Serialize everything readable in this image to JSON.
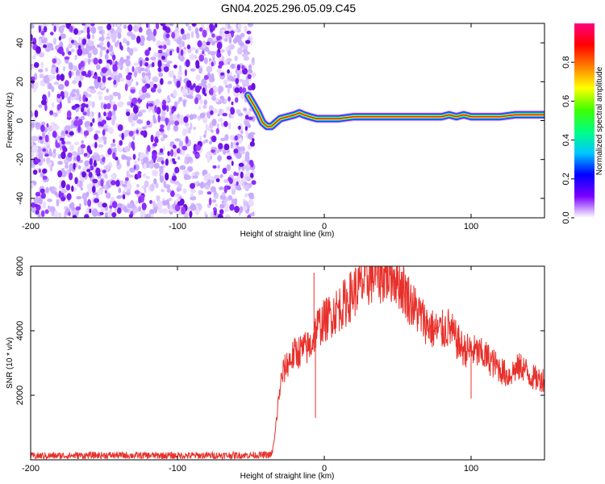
{
  "title": "GN04.2025.296.05.09.C45",
  "chart_data": [
    {
      "type": "heatmap",
      "name": "spectrogram",
      "xlabel": "Height of straight line (km)",
      "ylabel": "Frequency (Hz)",
      "xlim": [
        -200,
        150
      ],
      "ylim": [
        -50,
        50
      ],
      "xticks": [
        -200,
        -100,
        0,
        100
      ],
      "yticks": [
        -40,
        -20,
        0,
        20,
        40
      ],
      "noise_region_x": [
        -200,
        -48
      ],
      "ridge": {
        "x": [
          -52,
          -48,
          -45,
          -42,
          -39,
          -36,
          -33,
          -30,
          -25,
          -20,
          -17,
          -14,
          -10,
          -5,
          0,
          10,
          20,
          30,
          40,
          50,
          60,
          70,
          80,
          85,
          90,
          95,
          100,
          110,
          120,
          130,
          140,
          150
        ],
        "freq": [
          13,
          8,
          4,
          -1,
          -3,
          -3,
          -1,
          1,
          2,
          3,
          4,
          3,
          2,
          1,
          1,
          1,
          2,
          2,
          2,
          2,
          2,
          2,
          2,
          3,
          2,
          3,
          2,
          2,
          2,
          3,
          3,
          3
        ]
      },
      "colorbar": {
        "label": "Normalized spectral amplitude",
        "ticks": [
          0.0,
          0.2,
          0.4,
          0.6,
          0.8
        ],
        "range": [
          0,
          1
        ],
        "colors": [
          "#ffffff",
          "#7a00ff",
          "#0000ff",
          "#00c8ff",
          "#00ff80",
          "#40ff00",
          "#ffff00",
          "#ff8000",
          "#ff0000",
          "#ff0080"
        ]
      }
    },
    {
      "type": "line",
      "name": "snr",
      "xlabel": "Height of straight line (km)",
      "ylabel": "SNR (10 * v/v)",
      "xlim": [
        -200,
        150
      ],
      "ylim": [
        0,
        6000
      ],
      "xticks": [
        -200,
        -100,
        0,
        100
      ],
      "yticks": [
        2000,
        4000,
        6000
      ],
      "color": "#e8302a",
      "series": [
        {
          "x": [
            -200,
            -150,
            -100,
            -60,
            -36,
            -34,
            -32,
            -30,
            -28,
            -25,
            -20,
            -15,
            -10,
            -8,
            -5,
            0,
            5,
            10,
            15,
            20,
            25,
            30,
            35,
            40,
            45,
            50,
            55,
            60,
            65,
            70,
            75,
            80,
            85,
            90,
            95,
            100,
            105,
            110,
            115,
            120,
            125,
            130,
            135,
            140,
            145,
            150
          ],
          "y": [
            120,
            140,
            130,
            140,
            150,
            600,
            1500,
            2300,
            2700,
            3000,
            3300,
            3400,
            3500,
            3700,
            4100,
            4300,
            4500,
            4700,
            4900,
            5200,
            5400,
            5600,
            5800,
            5700,
            5800,
            5600,
            5200,
            4800,
            4500,
            4200,
            4000,
            4000,
            4100,
            3700,
            3400,
            3400,
            3300,
            3200,
            3000,
            2800,
            2600,
            2800,
            2900,
            2600,
            2500,
            2500
          ]
        }
      ],
      "spikes": [
        {
          "x": -7,
          "y": 5800
        },
        {
          "x": -6,
          "y": 1300
        },
        {
          "x": 100,
          "y": 1900
        }
      ]
    }
  ]
}
